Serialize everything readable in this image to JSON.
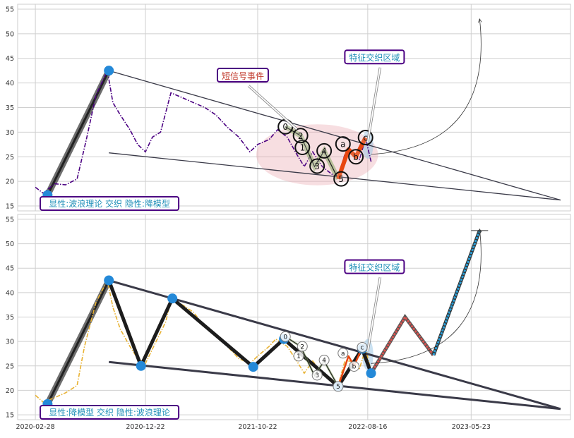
{
  "chart_data": [
    {
      "type": "line",
      "panel": "top",
      "title": "",
      "xlabel": "",
      "ylabel": "",
      "ylim": [
        14,
        56
      ],
      "yticks": [
        15,
        20,
        25,
        30,
        35,
        40,
        45,
        50,
        55
      ],
      "xlim": [
        "2020-01-11",
        "2024-02-16"
      ],
      "xticks": [],
      "grid": true,
      "price_color": "#4b0082",
      "price_series": [
        [
          "2020-02-28",
          18.8
        ],
        [
          "2020-03-20",
          17.6
        ],
        [
          "2020-04-20",
          19.5
        ],
        [
          "2020-05-20",
          19.3
        ],
        [
          "2020-06-20",
          20.5
        ],
        [
          "2020-07-15",
          28.5
        ],
        [
          "2020-08-10",
          37.5
        ],
        [
          "2020-09-10",
          42.5
        ],
        [
          "2020-09-25",
          36
        ],
        [
          "2020-10-15",
          33.5
        ],
        [
          "2020-11-10",
          30.5
        ],
        [
          "2020-12-01",
          27.5
        ],
        [
          "2020-12-22",
          26
        ],
        [
          "2021-01-10",
          29
        ],
        [
          "2021-02-01",
          30
        ],
        [
          "2021-03-01",
          38
        ],
        [
          "2021-04-01",
          37
        ],
        [
          "2021-05-01",
          36
        ],
        [
          "2021-06-01",
          35
        ],
        [
          "2021-07-01",
          33.5
        ],
        [
          "2021-08-01",
          31
        ],
        [
          "2021-09-01",
          29
        ],
        [
          "2021-10-01",
          26
        ],
        [
          "2021-10-22",
          27.5
        ],
        [
          "2021-11-22",
          28.5
        ],
        [
          "2021-12-15",
          30.5
        ],
        [
          "2022-01-10",
          29
        ],
        [
          "2022-02-05",
          25.5
        ],
        [
          "2022-02-25",
          23
        ],
        [
          "2022-03-20",
          26
        ],
        [
          "2022-04-15",
          23
        ],
        [
          "2022-05-10",
          21.5
        ],
        [
          "2022-05-28",
          20.8
        ],
        [
          "2022-06-15",
          25.5
        ],
        [
          "2022-07-05",
          26
        ],
        [
          "2022-07-25",
          24.5
        ],
        [
          "2022-08-10",
          28.8
        ],
        [
          "2022-08-25",
          24
        ]
      ],
      "trendlines": [
        {
          "name": "upper",
          "from": [
            "2020-09-14",
            42.5
          ],
          "to": [
            "2024-01-20",
            16.2
          ]
        },
        {
          "name": "lower",
          "from": [
            "2020-09-14",
            25.8
          ],
          "to": [
            "2024-01-20",
            16.2
          ]
        }
      ],
      "big_impulse": {
        "from": [
          "2020-04-01",
          17.2
        ],
        "to": [
          "2020-09-14",
          42.5
        ]
      },
      "wave_labels": [
        {
          "label": "0",
          "x": "2022-01-05",
          "y": 31.1
        },
        {
          "label": "1",
          "x": "2022-02-20",
          "y": 26.9
        },
        {
          "label": "2",
          "x": "2022-02-15",
          "y": 29.3
        },
        {
          "label": "3",
          "x": "2022-04-01",
          "y": 23.1
        },
        {
          "label": "4",
          "x": "2022-04-20",
          "y": 26.2
        },
        {
          "label": "5",
          "x": "2022-06-05",
          "y": 20.5
        },
        {
          "label": "a",
          "x": "2022-06-10",
          "y": 27.6
        },
        {
          "label": "b",
          "x": "2022-07-15",
          "y": 25.0
        },
        {
          "label": "c",
          "x": "2022-08-10",
          "y": 28.9
        }
      ],
      "wave_paths": [
        {
          "kind": "impulse",
          "points": [
            [
              "2022-01-05",
              31.1
            ],
            [
              "2022-02-15",
              29.3
            ],
            [
              "2022-03-25",
              23
            ],
            [
              "2022-04-20",
              26.2
            ],
            [
              "2022-05-28",
              20.5
            ]
          ]
        },
        {
          "kind": "correction",
          "points": [
            [
              "2022-05-28",
              20.5
            ],
            [
              "2022-06-25",
              26.5
            ],
            [
              "2022-07-15",
              25
            ],
            [
              "2022-08-10",
              28.9
            ]
          ]
        }
      ],
      "event_ellipse": {
        "center": [
          "2022-04-01",
          25.4
        ],
        "rx_days": 165,
        "ry": 6.2
      },
      "zone_ellipse": {
        "center": [
          "2022-08-16",
          27.5
        ],
        "rx_days": 15,
        "ry": 2.9
      },
      "projection_arc": {
        "from": [
          "2022-08-25",
          25.5
        ],
        "to": [
          "2023-06-15",
          53
        ]
      },
      "annotations": [
        {
          "text": "短信号事件",
          "color": "#c0392b",
          "box_x": "2021-07-05",
          "box_y": 40.8,
          "arrow_to": [
            "2022-02-05",
            30.6
          ]
        },
        {
          "text": "特征交织区域",
          "color": "#1f8fb8",
          "box_x": "2022-06-15",
          "box_y": 44.5,
          "arrow_to": [
            "2022-08-16",
            28
          ]
        }
      ],
      "corner_label": "显性:波浪理论 交织 隐性:降模型"
    },
    {
      "type": "line",
      "panel": "bottom",
      "title": "",
      "xlabel": "",
      "ylabel": "",
      "ylim": [
        14,
        56
      ],
      "yticks": [
        15,
        20,
        25,
        30,
        35,
        40,
        45,
        50,
        55
      ],
      "xlim": [
        "2020-01-11",
        "2024-02-16"
      ],
      "xticks": [
        "2020-02-28",
        "2020-12-22",
        "2021-10-22",
        "2022-08-16",
        "2023-05-23"
      ],
      "grid": true,
      "price_color": "#e8b233",
      "price_series": [
        [
          "2020-02-28",
          19
        ],
        [
          "2020-03-20",
          17.6
        ],
        [
          "2020-04-20",
          18.5
        ],
        [
          "2020-05-20",
          19.5
        ],
        [
          "2020-06-20",
          21
        ],
        [
          "2020-07-10",
          29
        ],
        [
          "2020-08-10",
          38
        ],
        [
          "2020-09-10",
          42.5
        ],
        [
          "2020-09-25",
          37
        ],
        [
          "2020-10-15",
          32.5
        ],
        [
          "2020-11-10",
          29
        ],
        [
          "2020-12-01",
          26.5
        ],
        [
          "2020-12-22",
          25.5
        ],
        [
          "2021-01-20",
          30
        ],
        [
          "2021-02-15",
          34
        ],
        [
          "2021-03-01",
          38.5
        ],
        [
          "2021-04-01",
          37.5
        ],
        [
          "2021-05-01",
          36
        ],
        [
          "2021-06-01",
          33
        ],
        [
          "2021-07-01",
          31
        ],
        [
          "2021-08-01",
          29
        ],
        [
          "2021-09-01",
          26.5
        ],
        [
          "2021-10-01",
          25.5
        ],
        [
          "2021-10-22",
          27
        ],
        [
          "2021-11-22",
          29
        ],
        [
          "2021-12-10",
          30.5
        ],
        [
          "2022-01-10",
          29
        ],
        [
          "2022-02-05",
          26
        ],
        [
          "2022-02-25",
          23.5
        ],
        [
          "2022-03-20",
          26
        ],
        [
          "2022-04-15",
          23.5
        ],
        [
          "2022-05-10",
          22
        ],
        [
          "2022-05-28",
          21
        ],
        [
          "2022-06-15",
          26
        ],
        [
          "2022-07-05",
          26
        ],
        [
          "2022-07-25",
          24.5
        ],
        [
          "2022-08-10",
          28.5
        ],
        [
          "2022-08-25",
          24
        ]
      ],
      "trendlines": [
        {
          "name": "upper",
          "from": [
            "2020-09-14",
            42.5
          ],
          "to": [
            "2024-01-20",
            16.2
          ]
        },
        {
          "name": "lower",
          "from": [
            "2020-09-14",
            25.8
          ],
          "to": [
            "2024-01-20",
            16.2
          ]
        }
      ],
      "big_impulse": {
        "from": [
          "2020-04-01",
          17.2
        ],
        "to": [
          "2020-09-14",
          42.5
        ]
      },
      "zigzag": [
        [
          "2020-09-14",
          42.5
        ],
        [
          "2020-12-10",
          25
        ],
        [
          "2021-03-05",
          38.8
        ],
        [
          "2021-10-10",
          24.8
        ],
        [
          "2022-01-01",
          30.5
        ],
        [
          "2022-05-28",
          20.8
        ],
        [
          "2022-08-01",
          28.5
        ],
        [
          "2022-08-25",
          23.5
        ]
      ],
      "pivot_points": [
        [
          "2020-04-01",
          17.2
        ],
        [
          "2020-09-14",
          42.5
        ],
        [
          "2020-12-10",
          25
        ],
        [
          "2021-03-05",
          38.8
        ],
        [
          "2021-10-10",
          24.8
        ],
        [
          "2022-01-01",
          30.5
        ],
        [
          "2022-05-28",
          20.8
        ],
        [
          "2022-08-01",
          28.5
        ],
        [
          "2022-08-25",
          23.5
        ]
      ],
      "wave_labels": [
        {
          "label": "0",
          "x": "2022-01-05",
          "y": 31.0
        },
        {
          "label": "1",
          "x": "2022-02-10",
          "y": 27.0
        },
        {
          "label": "2",
          "x": "2022-02-20",
          "y": 29.0
        },
        {
          "label": "3",
          "x": "2022-04-01",
          "y": 23.1
        },
        {
          "label": "4",
          "x": "2022-04-20",
          "y": 26.2
        },
        {
          "label": "5",
          "x": "2022-05-28",
          "y": 20.8
        },
        {
          "label": "a",
          "x": "2022-06-10",
          "y": 27.6
        },
        {
          "label": "b",
          "x": "2022-07-10",
          "y": 24.9
        },
        {
          "label": "c",
          "x": "2022-08-01",
          "y": 28.8
        }
      ],
      "wave_paths": [
        {
          "kind": "impulse",
          "points": [
            [
              "2022-01-05",
              31
            ],
            [
              "2022-02-15",
              29
            ],
            [
              "2022-03-25",
              23
            ],
            [
              "2022-04-20",
              26
            ],
            [
              "2022-05-28",
              20.8
            ]
          ]
        },
        {
          "kind": "correction",
          "points": [
            [
              "2022-05-28",
              20.8
            ],
            [
              "2022-06-25",
              27
            ],
            [
              "2022-07-10",
              25
            ],
            [
              "2022-08-01",
              28.8
            ]
          ]
        }
      ],
      "forecast_red": [
        [
          "2022-08-25",
          23.5
        ],
        [
          "2022-11-25",
          35
        ],
        [
          "2023-02-10",
          27.2
        ]
      ],
      "forecast_blue": [
        [
          "2023-02-10",
          27.2
        ],
        [
          "2023-06-15",
          52.7
        ]
      ],
      "zone_ellipse": {
        "center": [
          "2022-08-16",
          27.3
        ],
        "rx_days": 15,
        "ry": 3.2
      },
      "projection_arc": {
        "from": [
          "2022-08-25",
          25.5
        ],
        "to": [
          "2023-06-15",
          53
        ]
      },
      "annotations": [
        {
          "text": "特征交织区域",
          "color": "#1f8fb8",
          "box_x": "2022-06-15",
          "box_y": 44.5,
          "arrow_to": [
            "2022-08-16",
            28
          ]
        }
      ],
      "corner_label": "显性:降模型 交织 隐性:波浪理论"
    }
  ]
}
